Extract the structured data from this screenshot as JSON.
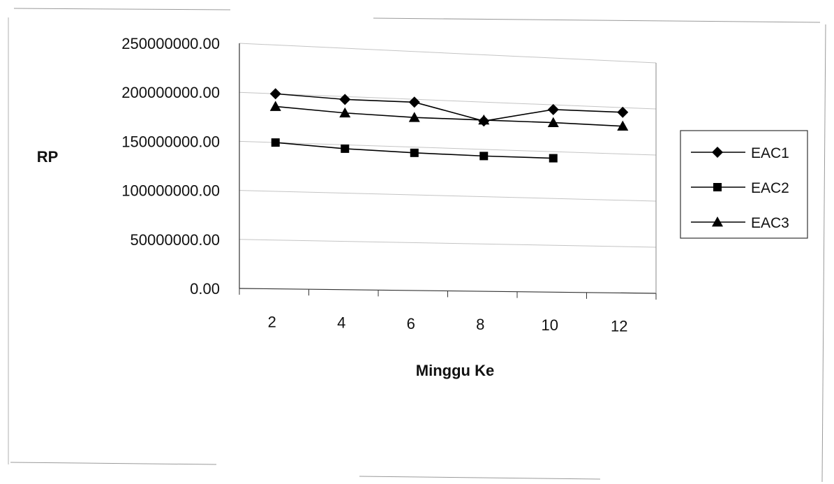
{
  "chart_data": {
    "type": "line",
    "title": "",
    "xlabel": "Minggu Ke",
    "ylabel": "RP",
    "x": [
      "2",
      "4",
      "6",
      "8",
      "10",
      "12"
    ],
    "ylim": [
      0,
      250000000
    ],
    "y_ticks": [
      "0.00",
      "50000000.00",
      "100000000.00",
      "150000000.00",
      "200000000.00",
      "250000000.00"
    ],
    "grid": true,
    "legend_position": "right",
    "series": [
      {
        "name": "EAC1",
        "marker": "diamond",
        "values": [
          200000000,
          197000000,
          197000000,
          180000000,
          195000000,
          195000000
        ]
      },
      {
        "name": "EAC2",
        "marker": "square",
        "values": [
          150000000,
          146000000,
          144000000,
          143000000,
          143000000,
          null
        ]
      },
      {
        "name": "EAC3",
        "marker": "triangle",
        "values": [
          187000000,
          183000000,
          181000000,
          181000000,
          181000000,
          180000000
        ]
      }
    ]
  }
}
